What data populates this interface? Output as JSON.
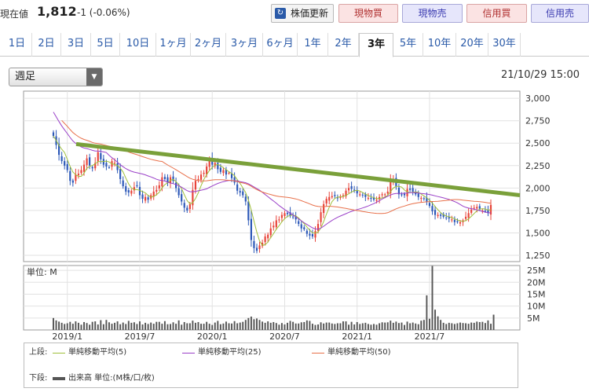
{
  "price": {
    "label": "現在値",
    "value": "1,812",
    "change": "-1 (-0.06%)"
  },
  "buttons": {
    "refresh": "株価更新",
    "spot_buy": "現物買",
    "spot_sell": "現物売",
    "margin_buy": "信用買",
    "margin_sell": "信用売"
  },
  "tabs": [
    "1日",
    "2日",
    "3日",
    "5日",
    "10日",
    "1ヶ月",
    "2ヶ月",
    "3ヶ月",
    "6ヶ月",
    "1年",
    "2年",
    "3年",
    "5年",
    "10年",
    "20年",
    "30年"
  ],
  "active_tab": "3年",
  "select": {
    "value": "週足"
  },
  "datetime": "21/10/29 15:00",
  "colors": {
    "up": "#e8443a",
    "down": "#2c58b8",
    "ma5": "#9fbf3a",
    "ma25": "#9a40c8",
    "ma50": "#e8704a",
    "trendline": "#7aa03a",
    "volume": "#555555"
  },
  "chart_data": [
    {
      "type": "candlestick",
      "title": "",
      "interval": "週足",
      "y_ticks": [
        "3,000",
        "2,750",
        "2,500",
        "2,250",
        "2,000",
        "1,750",
        "1,500",
        "1,250"
      ],
      "ylim": [
        1180,
        3080
      ],
      "x_ticks": [
        "2019/1",
        "2019/7",
        "2020/1",
        "2020/7",
        "2021/1",
        "2021/7"
      ],
      "close_weekly": [
        2580,
        2480,
        2370,
        2300,
        2250,
        2200,
        2080,
        2060,
        2150,
        2160,
        2200,
        2260,
        2330,
        2250,
        2220,
        2280,
        2400,
        2320,
        2260,
        2240,
        2230,
        2300,
        2280,
        2200,
        2100,
        2020,
        1960,
        1950,
        1970,
        2010,
        2020,
        1920,
        1880,
        1900,
        1870,
        1920,
        1960,
        1980,
        2030,
        2120,
        2100,
        2060,
        2120,
        2080,
        2000,
        1920,
        1850,
        1780,
        1750,
        1820,
        1980,
        2080,
        2100,
        2150,
        2170,
        2240,
        2320,
        2260,
        2280,
        2210,
        2180,
        2200,
        2150,
        2170,
        2110,
        2060,
        1970,
        1950,
        1920,
        1850,
        1640,
        1420,
        1330,
        1300,
        1360,
        1390,
        1460,
        1480,
        1550,
        1580,
        1640,
        1650,
        1700,
        1720,
        1710,
        1690,
        1680,
        1650,
        1600,
        1550,
        1540,
        1490,
        1470,
        1460,
        1520,
        1600,
        1730,
        1820,
        1880,
        1900,
        1910,
        1910,
        1890,
        1900,
        1920,
        1970,
        2000,
        1990,
        1970,
        1940,
        1930,
        1920,
        1900,
        1890,
        1880,
        1870,
        1870,
        1900,
        1930,
        1930,
        1960,
        2080,
        2100,
        2020,
        1930,
        1920,
        1920,
        1990,
        1980,
        1960,
        1930,
        1900,
        1890,
        1880,
        1850,
        1800,
        1740,
        1700,
        1700,
        1690,
        1680,
        1670,
        1660,
        1650,
        1620,
        1620,
        1620,
        1640,
        1680,
        1720,
        1760,
        1780,
        1790,
        1770,
        1750,
        1740,
        1720,
        1812
      ],
      "volume_ylabels": [
        "25M",
        "20M",
        "15M",
        "10M",
        "5M"
      ],
      "volume_ylim": [
        0,
        27
      ],
      "volume_unit_label": "単位: M",
      "volume_weekly": [
        5,
        4,
        3.5,
        3,
        2.5,
        2.8,
        3.4,
        2.6,
        3.6,
        3,
        2.2,
        3.3,
        2.9,
        2.2,
        3.4,
        3.6,
        2.3,
        4.1,
        2.4,
        4.2,
        3.2,
        2.6,
        3,
        3.6,
        2.4,
        3.1,
        2.5,
        3.8,
        3,
        3.2,
        2.5,
        3.6,
        2.3,
        3,
        2.5,
        3.1,
        2.6,
        3.4,
        3.4,
        2.6,
        3.7,
        2.4,
        2.5,
        3.2,
        2.6,
        4,
        2.2,
        3.3,
        2.8,
        2.8,
        3.9,
        3,
        3.3,
        2.6,
        2.6,
        3.4,
        2.6,
        2.1,
        3.1,
        3.8,
        2.4,
        2.7,
        3.5,
        2.8,
        2.7,
        3.7,
        2.8,
        3.1,
        3.4,
        4.2,
        5,
        5.6,
        4.5,
        4.8,
        4.2,
        3.5,
        3,
        3.6,
        3,
        3.3,
        2.9,
        2.2,
        2.9,
        2.3,
        3,
        3.8,
        3.4,
        2.7,
        2.7,
        3.2,
        3.3,
        4,
        3.8,
        2.6,
        2.1,
        2.3,
        3.2,
        2.7,
        3.1,
        3.1,
        2.7,
        2.5,
        2.8,
        2.8,
        3.6,
        3.6,
        2.2,
        3.4,
        2.3,
        3.3,
        2.5,
        2.8,
        3,
        2.5,
        2.2,
        2.5,
        2.2,
        2.8,
        3.2,
        3.1,
        3.2,
        3.9,
        3,
        3.5,
        2.9,
        3.1,
        2.1,
        3.5,
        2.8,
        3.1,
        2.7,
        2.4,
        3.9,
        4.2,
        14.5,
        4.7,
        26.8,
        8.5,
        5.7,
        4.2,
        3,
        2.5,
        3,
        2.8,
        2.5,
        2.8,
        3.1,
        2.9,
        2.8,
        2.6,
        3.1,
        3,
        3.5,
        3.3,
        3.4,
        2.9,
        4,
        2.6,
        6.4
      ],
      "series": [
        {
          "name": "単純移動平均(5)"
        },
        {
          "name": "単純移動平均(25)"
        },
        {
          "name": "単純移動平均(50)"
        },
        {
          "name": "出来高 単位:(M株/口/枚)"
        }
      ],
      "trendline": {
        "from": [
          "2018/12",
          2490
        ],
        "to": [
          "2021/10",
          1920
        ]
      },
      "grid": true
    }
  ],
  "legend": {
    "upper_label": "上段:",
    "lower_label": "下段:",
    "ma5": "単純移動平均(5)",
    "ma25": "単純移動平均(25)",
    "ma50": "単純移動平均(50)",
    "volume": "出来高 単位:(M株/口/枚)"
  }
}
